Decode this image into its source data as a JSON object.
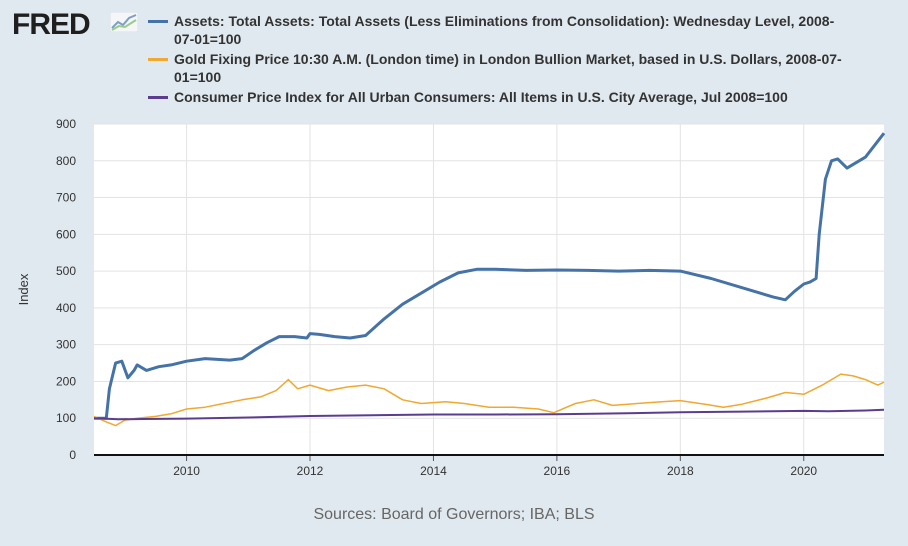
{
  "brand": {
    "name": "FRED",
    "logo_icon": "fred-chart-logo-icon"
  },
  "source_text": "Sources: Board of Governors; IBA; BLS",
  "chart_data": {
    "type": "line",
    "ylabel": "Index",
    "ylim": [
      0,
      900
    ],
    "yticks": [
      0,
      100,
      200,
      300,
      400,
      500,
      600,
      700,
      800,
      900
    ],
    "xlim": [
      2008.5,
      2021.3
    ],
    "xticks": [
      2010,
      2012,
      2014,
      2016,
      2018,
      2020
    ],
    "xtick_labels": [
      "2010",
      "2012",
      "2014",
      "2016",
      "2018",
      "2020"
    ],
    "grid": true,
    "legend_position": "top",
    "series": [
      {
        "name": "Assets: Total Assets: Total Assets (Less Eliminations from Consolidation): Wednesday Level, 2008-07-01=100",
        "color": "#4572a7",
        "x": [
          2008.5,
          2008.7,
          2008.75,
          2008.85,
          2008.95,
          2009.05,
          2009.15,
          2009.2,
          2009.35,
          2009.45,
          2009.55,
          2009.75,
          2010.0,
          2010.3,
          2010.5,
          2010.7,
          2010.9,
          2011.1,
          2011.3,
          2011.5,
          2011.75,
          2011.95,
          2012.0,
          2012.15,
          2012.4,
          2012.65,
          2012.9,
          2013.2,
          2013.5,
          2013.8,
          2014.1,
          2014.4,
          2014.7,
          2015.0,
          2015.5,
          2016.0,
          2016.5,
          2017.0,
          2017.5,
          2018.0,
          2018.5,
          2019.0,
          2019.5,
          2019.7,
          2019.85,
          2020.0,
          2020.1,
          2020.2,
          2020.25,
          2020.35,
          2020.45,
          2020.55,
          2020.7,
          2021.0,
          2021.3
        ],
        "y": [
          100,
          100,
          180,
          250,
          255,
          210,
          230,
          245,
          230,
          235,
          240,
          245,
          255,
          262,
          260,
          258,
          262,
          285,
          305,
          322,
          322,
          318,
          330,
          328,
          322,
          318,
          325,
          370,
          410,
          440,
          470,
          495,
          505,
          505,
          502,
          503,
          502,
          500,
          502,
          500,
          480,
          455,
          430,
          422,
          445,
          465,
          470,
          480,
          600,
          750,
          800,
          805,
          780,
          810,
          875
        ]
      },
      {
        "name": "Gold Fixing Price 10:30 A.M. (London time) in London Bullion Market, based in U.S. Dollars, 2008-07-01=100",
        "color": "#f0a830",
        "x": [
          2008.5,
          2008.7,
          2008.85,
          2009.0,
          2009.2,
          2009.5,
          2009.75,
          2010.0,
          2010.3,
          2010.6,
          2010.9,
          2011.2,
          2011.45,
          2011.65,
          2011.8,
          2012.0,
          2012.3,
          2012.6,
          2012.9,
          2013.2,
          2013.5,
          2013.8,
          2014.2,
          2014.5,
          2014.9,
          2015.3,
          2015.7,
          2015.95,
          2016.3,
          2016.6,
          2016.9,
          2017.3,
          2017.7,
          2018.0,
          2018.4,
          2018.7,
          2019.0,
          2019.4,
          2019.7,
          2020.0,
          2020.3,
          2020.6,
          2020.8,
          2021.0,
          2021.2,
          2021.3
        ],
        "y": [
          105,
          90,
          80,
          95,
          100,
          105,
          112,
          125,
          130,
          140,
          150,
          158,
          175,
          205,
          180,
          190,
          175,
          185,
          190,
          180,
          150,
          140,
          145,
          140,
          130,
          130,
          125,
          115,
          140,
          150,
          135,
          140,
          145,
          148,
          138,
          130,
          138,
          155,
          170,
          165,
          190,
          220,
          215,
          205,
          190,
          198
        ]
      },
      {
        "name": "Consumer Price Index for All Urban Consumers: All Items in U.S. City Average, Jul 2008=100",
        "color": "#5b3d8f",
        "x": [
          2008.5,
          2008.9,
          2009.3,
          2010.0,
          2011.0,
          2012.0,
          2013.0,
          2014.0,
          2015.0,
          2016.0,
          2017.0,
          2018.0,
          2019.0,
          2020.0,
          2020.4,
          2021.0,
          2021.3
        ],
        "y": [
          100,
          97,
          98,
          99,
          102,
          106,
          108,
          110,
          110,
          111,
          113,
          116,
          118,
          120,
          119,
          121,
          123
        ]
      }
    ]
  }
}
